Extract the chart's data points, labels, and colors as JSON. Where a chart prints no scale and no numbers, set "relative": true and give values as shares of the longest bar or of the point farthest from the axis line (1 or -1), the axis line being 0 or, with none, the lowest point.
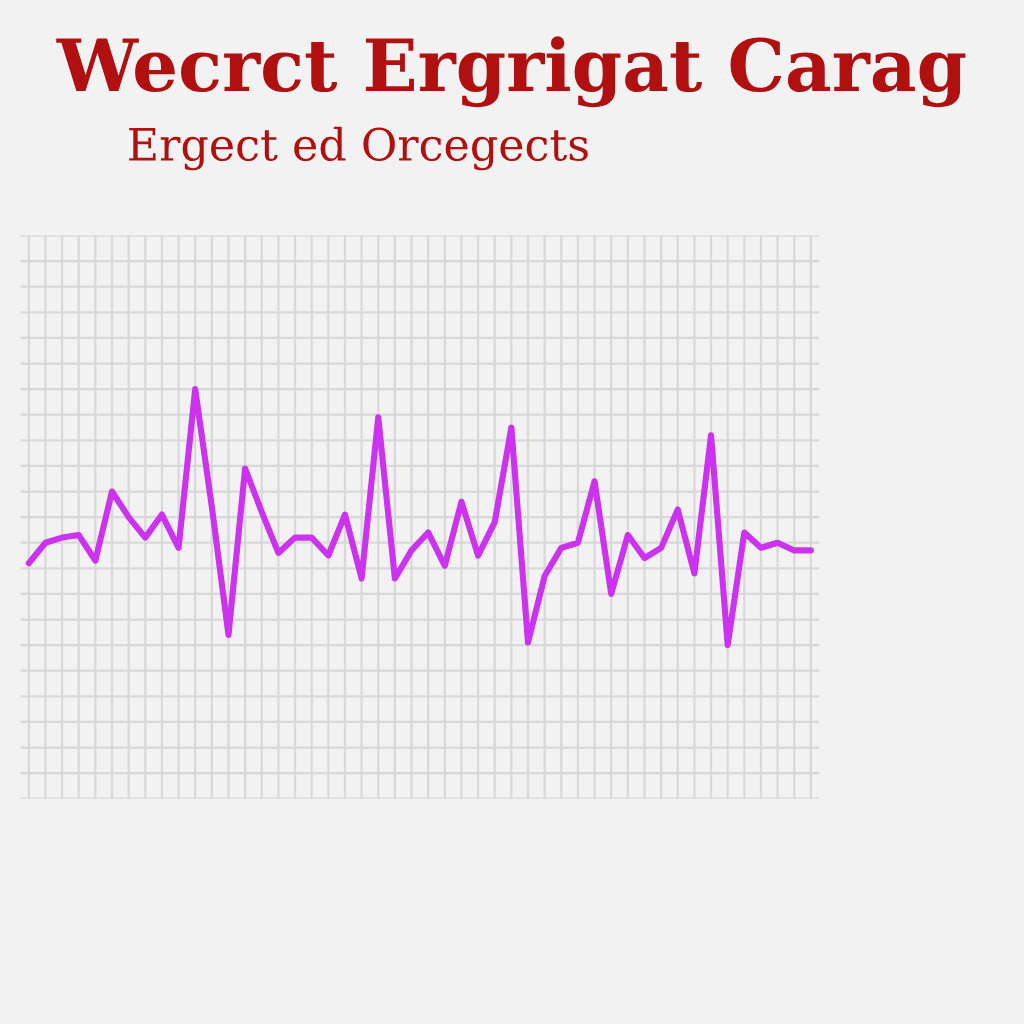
{
  "chart_data": {
    "type": "line",
    "title": "Wecrct Ergrigat Carag",
    "subtitle": "Ergect ed Orcegects",
    "relative": true,
    "grid": true,
    "categories": [
      null,
      null,
      null,
      null,
      null,
      null,
      null,
      null,
      null,
      null,
      null,
      null,
      null,
      null,
      null,
      null,
      null,
      null,
      null,
      null,
      null,
      null,
      null,
      null,
      null,
      null,
      null,
      null,
      null,
      null,
      null,
      null,
      null,
      null,
      null,
      null,
      null,
      null,
      null,
      null,
      null,
      null,
      null,
      null,
      null,
      null,
      null,
      null
    ],
    "series": [
      {
        "color": "#cc33ee",
        "values": [
          0.32,
          0.4,
          0.42,
          0.43,
          0.33,
          0.6,
          0.5,
          0.42,
          0.51,
          0.38,
          1.0,
          0.54,
          0.04,
          0.69,
          0.52,
          0.36,
          0.42,
          0.42,
          0.35,
          0.51,
          0.26,
          0.89,
          0.26,
          0.37,
          0.44,
          0.31,
          0.56,
          0.35,
          0.48,
          0.85,
          0.01,
          0.27,
          0.38,
          0.4,
          0.64,
          0.2,
          0.43,
          0.34,
          0.38,
          0.53,
          0.28,
          0.82,
          0.0,
          0.44,
          0.38,
          0.4,
          0.37,
          0.37
        ]
      }
    ]
  }
}
